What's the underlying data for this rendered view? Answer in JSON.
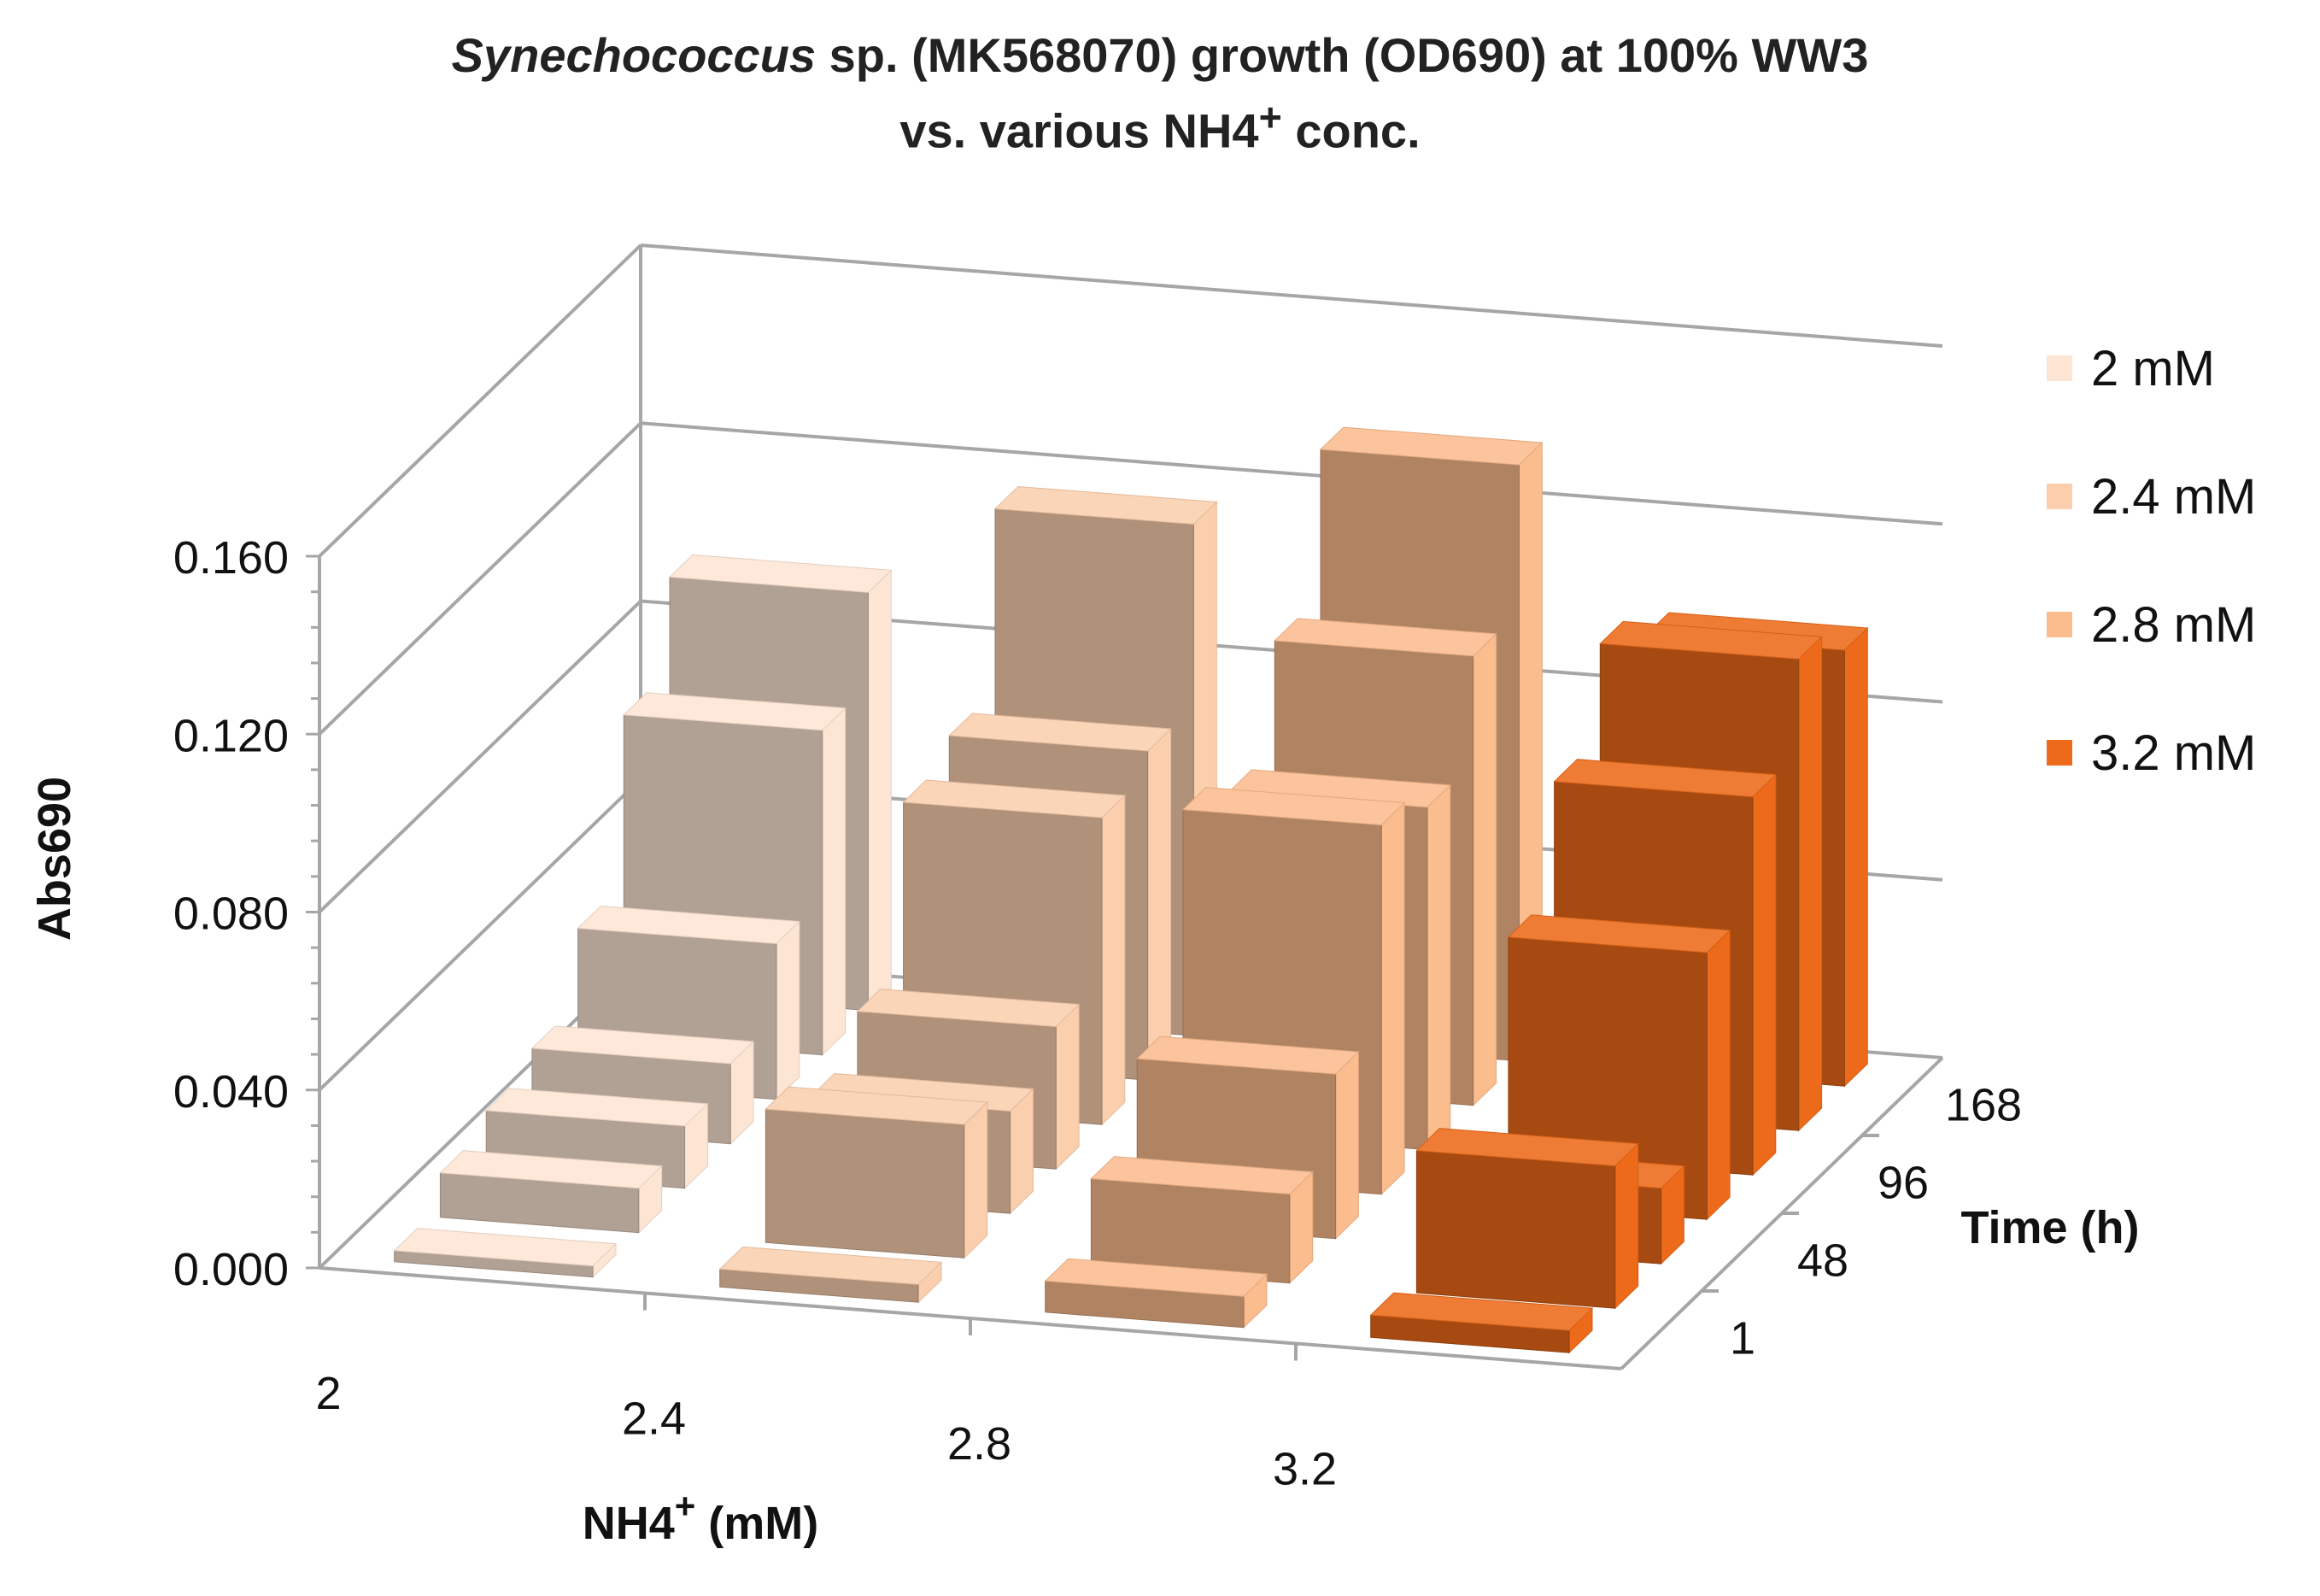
{
  "title": {
    "line1_italic": "Synechococcus",
    "line1_rest": " sp. (MK568070)  growth (OD690) at 100% WW3",
    "line2_pre": "vs. various NH4",
    "line2_sup": "+",
    "line2_post": " conc."
  },
  "chart_data": {
    "type": "bar3d",
    "y_axis": {
      "label": "Abs690",
      "min": 0,
      "max": 0.16,
      "ticks": [
        "0.000",
        "0.040",
        "0.080",
        "0.120",
        "0.160"
      ]
    },
    "x_axis": {
      "label_pre": "NH4",
      "label_sup": "+",
      "label_post": " (mM)",
      "categories": [
        "2",
        "2.4",
        "2.8",
        "3.2"
      ]
    },
    "depth_axis": {
      "label": "Time (h)",
      "categories": [
        "1",
        "48",
        "96",
        "168"
      ]
    },
    "series": [
      {
        "name": "2 mM",
        "color": "#fde5d4",
        "values": [
          0.002,
          0.01,
          0.014,
          0.018,
          0.035,
          0.073,
          0.094
        ]
      },
      {
        "name": "2.4 mM",
        "color": "#fbcfae",
        "values": [
          0.004,
          0.03,
          0.023,
          0.032,
          0.069,
          0.074,
          0.115
        ]
      },
      {
        "name": "2.8 mM",
        "color": "#fbbc8e",
        "values": [
          0.007,
          0.02,
          0.037,
          0.083,
          0.077,
          0.101,
          0.134
        ]
      },
      {
        "name": "3.2 mM",
        "color": "#ed6a1a",
        "values": [
          0.005,
          0.032,
          0.017,
          0.06,
          0.085,
          0.106,
          0.098
        ]
      }
    ]
  }
}
